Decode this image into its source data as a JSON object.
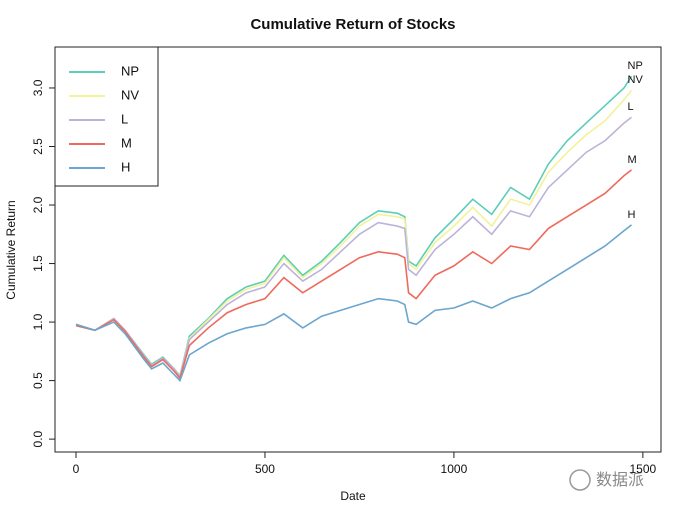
{
  "chart_data": {
    "type": "line",
    "title": "Cumulative Return of Stocks",
    "xlabel": "Date",
    "ylabel": "Cumulative Return",
    "x": [
      0,
      50,
      100,
      130,
      180,
      200,
      230,
      260,
      275,
      300,
      350,
      400,
      450,
      500,
      550,
      600,
      650,
      700,
      750,
      800,
      850,
      870,
      880,
      900,
      950,
      1000,
      1050,
      1100,
      1150,
      1200,
      1250,
      1300,
      1350,
      1400,
      1450,
      1470
    ],
    "series": [
      {
        "name": "NP",
        "color": "#5ccdb6",
        "values": [
          0.98,
          0.93,
          1.03,
          0.93,
          0.72,
          0.64,
          0.7,
          0.6,
          0.54,
          0.88,
          1.03,
          1.2,
          1.3,
          1.35,
          1.57,
          1.4,
          1.52,
          1.68,
          1.85,
          1.95,
          1.93,
          1.9,
          1.52,
          1.48,
          1.72,
          1.88,
          2.05,
          1.92,
          2.15,
          2.05,
          2.35,
          2.55,
          2.7,
          2.85,
          3.0,
          3.1
        ]
      },
      {
        "name": "NV",
        "color": "#f2f29a",
        "values": [
          0.97,
          0.93,
          1.03,
          0.93,
          0.71,
          0.63,
          0.69,
          0.6,
          0.53,
          0.86,
          1.02,
          1.18,
          1.28,
          1.33,
          1.55,
          1.38,
          1.5,
          1.65,
          1.82,
          1.92,
          1.9,
          1.88,
          1.5,
          1.45,
          1.68,
          1.82,
          1.98,
          1.82,
          2.05,
          2.0,
          2.28,
          2.45,
          2.6,
          2.72,
          2.9,
          2.98
        ]
      },
      {
        "name": "L",
        "color": "#bcb3d8",
        "values": [
          0.97,
          0.93,
          1.03,
          0.93,
          0.71,
          0.63,
          0.69,
          0.6,
          0.53,
          0.85,
          1.0,
          1.15,
          1.25,
          1.3,
          1.5,
          1.35,
          1.45,
          1.6,
          1.75,
          1.85,
          1.82,
          1.8,
          1.45,
          1.4,
          1.62,
          1.75,
          1.9,
          1.75,
          1.95,
          1.9,
          2.15,
          2.3,
          2.45,
          2.55,
          2.7,
          2.75
        ]
      },
      {
        "name": "M",
        "color": "#ef6a5c",
        "values": [
          0.97,
          0.93,
          1.02,
          0.92,
          0.7,
          0.62,
          0.68,
          0.58,
          0.52,
          0.8,
          0.95,
          1.08,
          1.15,
          1.2,
          1.38,
          1.25,
          1.35,
          1.45,
          1.55,
          1.6,
          1.58,
          1.55,
          1.25,
          1.2,
          1.4,
          1.48,
          1.6,
          1.5,
          1.65,
          1.62,
          1.8,
          1.9,
          2.0,
          2.1,
          2.25,
          2.3
        ]
      },
      {
        "name": "H",
        "color": "#6aa6cf",
        "values": [
          0.98,
          0.93,
          1.0,
          0.9,
          0.68,
          0.6,
          0.65,
          0.55,
          0.5,
          0.72,
          0.82,
          0.9,
          0.95,
          0.98,
          1.07,
          0.95,
          1.05,
          1.1,
          1.15,
          1.2,
          1.18,
          1.15,
          1.0,
          0.98,
          1.1,
          1.12,
          1.18,
          1.12,
          1.2,
          1.25,
          1.35,
          1.45,
          1.55,
          1.65,
          1.78,
          1.83
        ]
      }
    ],
    "xlim": [
      -55.6,
      1548
    ],
    "xticks": [
      0,
      500,
      1000,
      1500
    ],
    "ylim": [
      -0.11,
      3.35
    ],
    "yticks": [
      {
        "value": 0,
        "label": "0.0"
      },
      0.5,
      {
        "value": 1,
        "label": "1.0"
      },
      1.5,
      {
        "value": 2,
        "label": "2.0"
      },
      2.5,
      {
        "value": 3,
        "label": "3.0"
      }
    ],
    "legend": "top-left",
    "end_labels": true,
    "watermark": "数据派"
  }
}
